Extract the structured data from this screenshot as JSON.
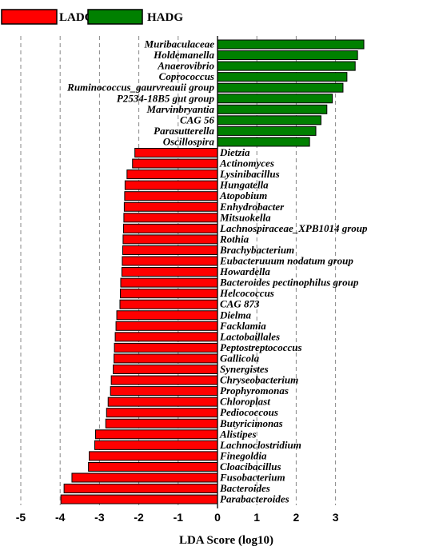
{
  "chart_data": {
    "type": "bar",
    "orientation": "horizontal",
    "xlabel": "LDA Score (log10)",
    "xlim": [
      -5,
      4
    ],
    "xticks": [
      -5,
      -4,
      -3,
      -2,
      -1,
      0,
      1,
      2,
      3
    ],
    "grid": "vertical dashed",
    "legend_position": "top-left",
    "series": [
      {
        "name": "LADG",
        "color": "#ff0000",
        "items": [
          {
            "label": "Dietzia",
            "value": -2.1
          },
          {
            "label": "Actinomyces",
            "value": -2.16
          },
          {
            "label": "Lysinibacillus",
            "value": -2.3
          },
          {
            "label": "Hungatella",
            "value": -2.35
          },
          {
            "label": "Atopobium",
            "value": -2.36
          },
          {
            "label": "Enhydrobacter",
            "value": -2.37
          },
          {
            "label": "Mitsuokella",
            "value": -2.38
          },
          {
            "label": "Lachnospiraceae_XPB1014 group",
            "value": -2.39
          },
          {
            "label": "Rothia",
            "value": -2.4
          },
          {
            "label": "Brachybacterium",
            "value": -2.41
          },
          {
            "label": "Eubacteruuum nodatum group",
            "value": -2.42
          },
          {
            "label": "Howardella",
            "value": -2.43
          },
          {
            "label": "Bacteroides pectinophilus group",
            "value": -2.46
          },
          {
            "label": "Helcococcus",
            "value": -2.47
          },
          {
            "label": "CAG 873",
            "value": -2.48
          },
          {
            "label": "Dielma",
            "value": -2.56
          },
          {
            "label": "Facklamia",
            "value": -2.58
          },
          {
            "label": "Lactobaillales",
            "value": -2.6
          },
          {
            "label": "Peptostreptococcus",
            "value": -2.62
          },
          {
            "label": "Gallicola",
            "value": -2.63
          },
          {
            "label": "Synergistes",
            "value": -2.65
          },
          {
            "label": "Chryseobacterium",
            "value": -2.7
          },
          {
            "label": "Prophyromonas",
            "value": -2.72
          },
          {
            "label": "Chloroplast",
            "value": -2.78
          },
          {
            "label": "Pediococcous",
            "value": -2.82
          },
          {
            "label": "Butyricimonas",
            "value": -2.84
          },
          {
            "label": "Alistipes",
            "value": -3.1
          },
          {
            "label": "Lachnoclostridium",
            "value": -3.12
          },
          {
            "label": "Finegoldia",
            "value": -3.26
          },
          {
            "label": "Cloacibacillus",
            "value": -3.28
          },
          {
            "label": "Fusobacterium",
            "value": -3.7
          },
          {
            "label": "Bacteroides",
            "value": -3.9
          },
          {
            "label": "Parabacteroides",
            "value": -3.98
          }
        ]
      },
      {
        "name": "HADG",
        "color": "#008000",
        "items": [
          {
            "label": "Muribaculaceae",
            "value": 3.72
          },
          {
            "label": "Holdemanella",
            "value": 3.56
          },
          {
            "label": "Anaerovibrio",
            "value": 3.5
          },
          {
            "label": "Coprococcus",
            "value": 3.29
          },
          {
            "label": "Ruminococcus_gaurvreauii group",
            "value": 3.19
          },
          {
            "label": "P2534-18B5 gut group",
            "value": 2.92
          },
          {
            "label": "Marvinbryantia",
            "value": 2.78
          },
          {
            "label": "CAG 56",
            "value": 2.63
          },
          {
            "label": "Parasutterella",
            "value": 2.5
          },
          {
            "label": "Oscillospira",
            "value": 2.34
          }
        ]
      }
    ]
  }
}
